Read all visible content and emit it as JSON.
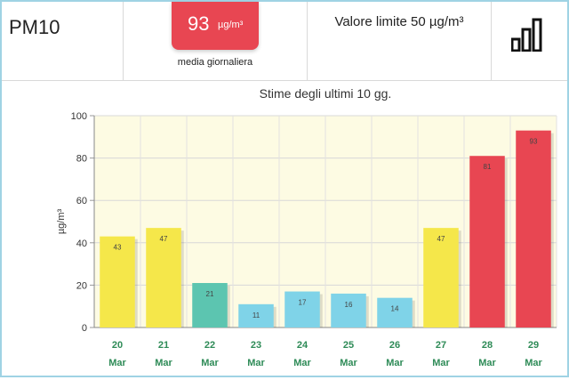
{
  "header": {
    "pollutant": "PM10",
    "value": "93",
    "value_unit": "µg/m³",
    "value_caption": "media giornaliera",
    "limit_text": "Valore limite 50 µg/m³",
    "icon": "bar-chart-icon"
  },
  "colors": {
    "accent": "#e84652",
    "yellow": "#f5e74a",
    "teal": "#5cc5b0",
    "light_blue": "#7fd3e8",
    "red": "#e84652",
    "axis_text": "#2e8b57"
  },
  "chart_data": {
    "type": "bar",
    "title": "Stime degli ultimi 10 gg.",
    "ylabel": "µg/m³",
    "ylim": [
      0,
      100
    ],
    "yticks": [
      0,
      20,
      40,
      60,
      80,
      100
    ],
    "grid": true,
    "categories": [
      {
        "day": "20",
        "month": "Mar"
      },
      {
        "day": "21",
        "month": "Mar"
      },
      {
        "day": "22",
        "month": "Mar"
      },
      {
        "day": "23",
        "month": "Mar"
      },
      {
        "day": "24",
        "month": "Mar"
      },
      {
        "day": "25",
        "month": "Mar"
      },
      {
        "day": "26",
        "month": "Mar"
      },
      {
        "day": "27",
        "month": "Mar"
      },
      {
        "day": "28",
        "month": "Mar"
      },
      {
        "day": "29",
        "month": "Mar"
      }
    ],
    "values": [
      43,
      47,
      21,
      11,
      17,
      16,
      14,
      47,
      81,
      93
    ],
    "bar_colors": [
      "#f5e74a",
      "#f5e74a",
      "#5cc5b0",
      "#7fd3e8",
      "#7fd3e8",
      "#7fd3e8",
      "#7fd3e8",
      "#f5e74a",
      "#e84652",
      "#e84652"
    ]
  }
}
